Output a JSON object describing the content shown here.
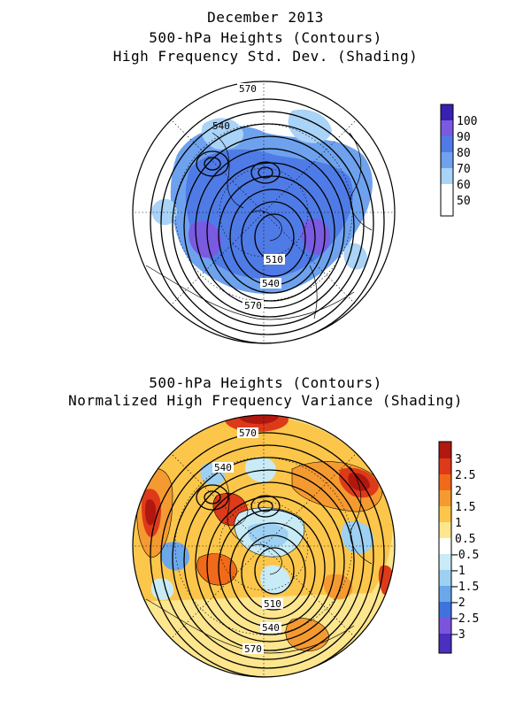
{
  "title": {
    "line1": "December 2013",
    "line2": "500-hPa Heights (Contours)",
    "line3": "High Frequency Std. Dev. (Shading)"
  },
  "title2": {
    "line1": "500-hPa Heights (Contours)",
    "line2": "Normalized High Frequency Variance (Shading)"
  },
  "map1": {
    "contour_labels": [
      "570",
      "540",
      "510",
      "540",
      "570"
    ],
    "colorbar": {
      "levels": [
        "100",
        "90",
        "80",
        "70",
        "60",
        "50"
      ],
      "colors": [
        "#3a1fb4",
        "#7a5ae0",
        "#4f7be6",
        "#6ea2ee",
        "#a9d3f7",
        "#ffffff"
      ]
    }
  },
  "map2": {
    "contour_labels": [
      "570",
      "540",
      "510",
      "540",
      "570"
    ],
    "colorbar": {
      "levels": [
        "3",
        "2.5",
        "2",
        "1.5",
        "1",
        "0.5",
        "−0.5",
        "−1",
        "−1.5",
        "−2",
        "−2.5",
        "−3"
      ],
      "colors": [
        "#b0180f",
        "#dd3a1a",
        "#f06a1a",
        "#f59a30",
        "#fbc64a",
        "#fde68e",
        "#ffffff",
        "#c8ebf6",
        "#9dd0f2",
        "#6ba8ea",
        "#3f72de",
        "#7a55dc",
        "#4a2fc0"
      ]
    }
  }
}
